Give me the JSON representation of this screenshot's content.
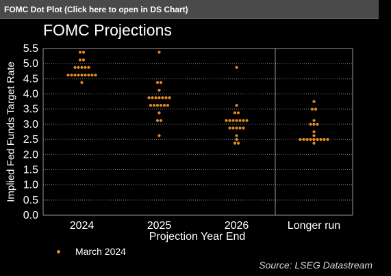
{
  "header": {
    "link_text": "FOMC Dot Plot (Click here to open in DS Chart)"
  },
  "source": "Source: LSEG Datastream",
  "colors": {
    "dot": "#e58a1f",
    "grid": "#9a9a9a",
    "background": "#000000"
  },
  "chart_data": {
    "type": "scatter",
    "title": "FOMC Projections",
    "xlabel": "Projection Year End",
    "ylabel": "Implied Fed Funds Target Rate",
    "ylim": [
      0,
      5.5
    ],
    "ytick_step": 0.5,
    "y_ticks": [
      "0.0",
      "0.5",
      "1.0",
      "1.5",
      "2.0",
      "2.5",
      "3.0",
      "3.5",
      "4.0",
      "4.5",
      "5.0",
      "5.5"
    ],
    "grid": "dotted horizontal",
    "categories": [
      "2024",
      "2025",
      "2026",
      "Longer run"
    ],
    "series": [
      {
        "name": "March 2024",
        "points": [
          {
            "category": "2024",
            "values": [
              {
                "y": 5.375,
                "count": 2
              },
              {
                "y": 5.125,
                "count": 2
              },
              {
                "y": 4.875,
                "count": 5
              },
              {
                "y": 4.625,
                "count": 9
              },
              {
                "y": 4.375,
                "count": 1
              }
            ]
          },
          {
            "category": "2025",
            "values": [
              {
                "y": 5.375,
                "count": 1
              },
              {
                "y": 4.375,
                "count": 2
              },
              {
                "y": 4.125,
                "count": 1
              },
              {
                "y": 3.875,
                "count": 7
              },
              {
                "y": 3.625,
                "count": 6
              },
              {
                "y": 3.375,
                "count": 1
              },
              {
                "y": 3.125,
                "count": 2
              },
              {
                "y": 2.625,
                "count": 1
              }
            ]
          },
          {
            "category": "2026",
            "values": [
              {
                "y": 4.875,
                "count": 1
              },
              {
                "y": 3.625,
                "count": 1
              },
              {
                "y": 3.375,
                "count": 2
              },
              {
                "y": 3.125,
                "count": 7
              },
              {
                "y": 2.875,
                "count": 5
              },
              {
                "y": 2.625,
                "count": 1
              },
              {
                "y": 2.5,
                "count": 1
              },
              {
                "y": 2.375,
                "count": 2
              }
            ]
          },
          {
            "category": "Longer run",
            "values": [
              {
                "y": 3.75,
                "count": 1
              },
              {
                "y": 3.5,
                "count": 2
              },
              {
                "y": 3.125,
                "count": 1
              },
              {
                "y": 3.0,
                "count": 3
              },
              {
                "y": 2.75,
                "count": 1
              },
              {
                "y": 2.625,
                "count": 1
              },
              {
                "y": 2.5,
                "count": 9
              },
              {
                "y": 2.375,
                "count": 1
              }
            ]
          }
        ]
      }
    ],
    "legend": {
      "position": "bottom-left",
      "entries": [
        "March 2024"
      ]
    }
  }
}
